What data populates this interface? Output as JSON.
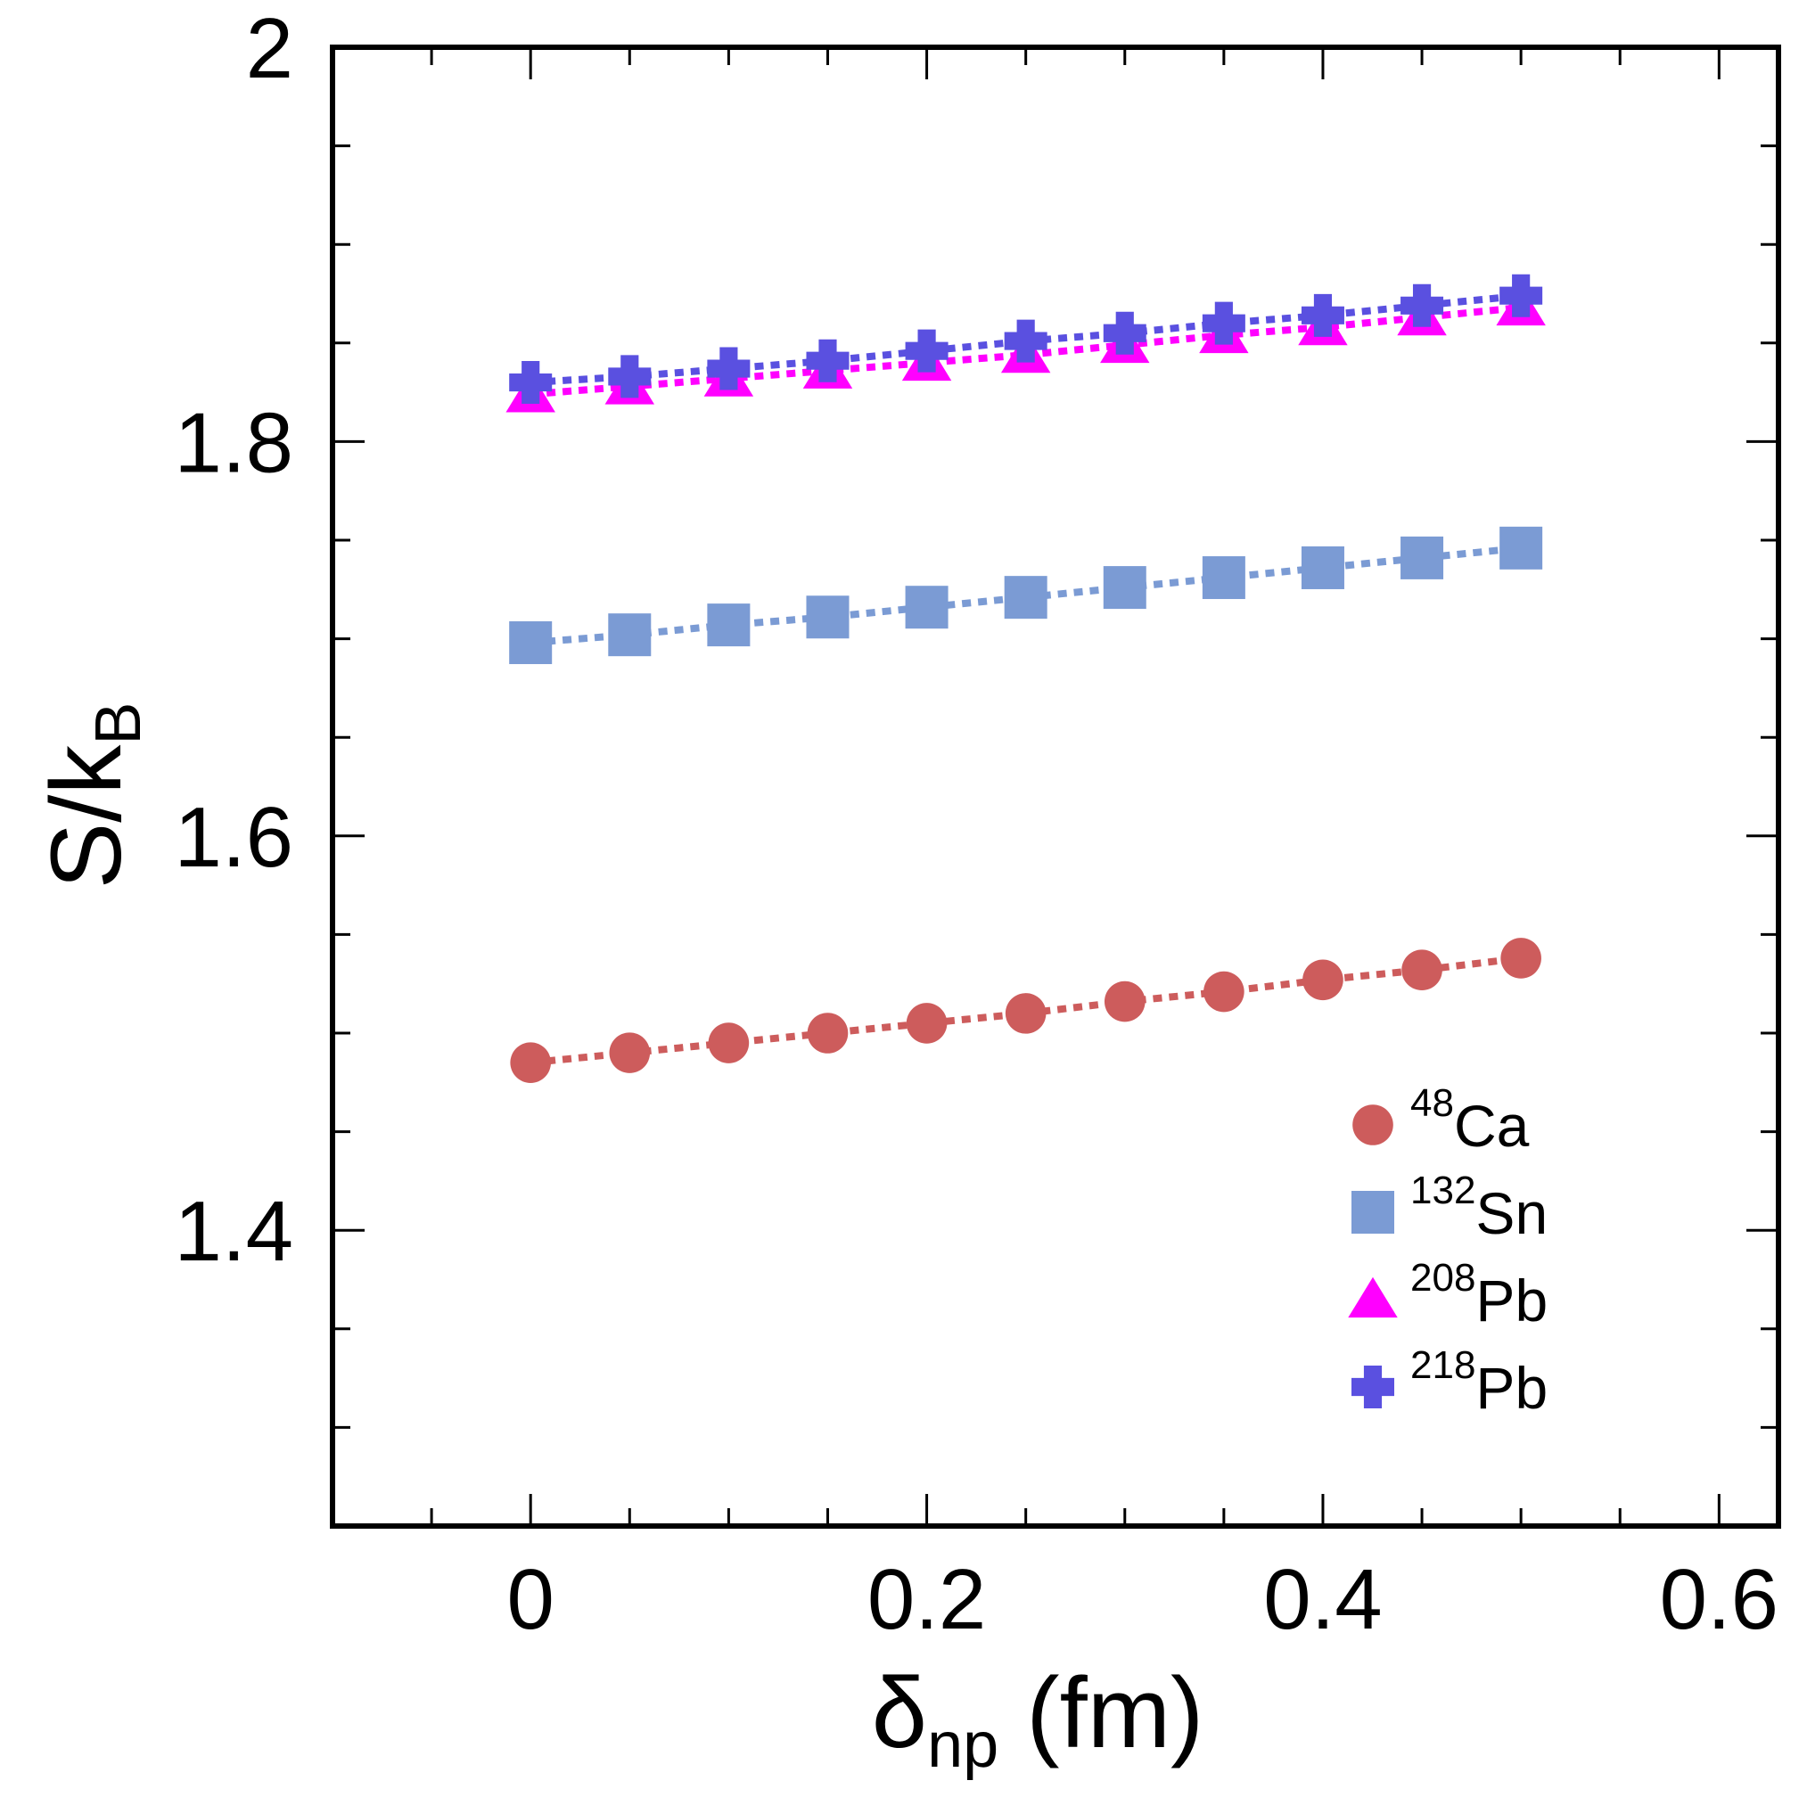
{
  "chart_data": {
    "type": "line",
    "title": "",
    "xlabel": {
      "symbol": "δ",
      "sub": "np",
      "suffix": " (fm)"
    },
    "ylabel": {
      "main": "S/k",
      "sub": "B"
    },
    "xlim": [
      -0.1,
      0.63
    ],
    "ylim": [
      1.25,
      2.0
    ],
    "xticks": [
      0,
      0.2,
      0.4,
      0.6
    ],
    "xtick_labels": [
      "0",
      "0.2",
      "0.4",
      "0.6"
    ],
    "yticks": [
      1.4,
      1.6,
      1.8,
      2.0
    ],
    "ytick_labels": [
      "1.4",
      "1.6",
      "1.8",
      "2"
    ],
    "x_minor_step": 0.05,
    "y_minor_step": 0.05,
    "grid": false,
    "legend_position": "bottom-right",
    "x": [
      0,
      0.05,
      0.1,
      0.15,
      0.2,
      0.25,
      0.3,
      0.35,
      0.4,
      0.45,
      0.5
    ],
    "series": [
      {
        "name": "Ca",
        "mass_number": "48",
        "marker": "circle",
        "color": "#cd5c5c",
        "values": [
          1.485,
          1.49,
          1.495,
          1.5,
          1.505,
          1.51,
          1.516,
          1.521,
          1.527,
          1.532,
          1.538
        ]
      },
      {
        "name": "Sn",
        "mass_number": "132",
        "marker": "square",
        "color": "#7b9bd4",
        "values": [
          1.698,
          1.702,
          1.707,
          1.711,
          1.716,
          1.721,
          1.726,
          1.731,
          1.736,
          1.741,
          1.746
        ]
      },
      {
        "name": "Pb",
        "mass_number": "208",
        "marker": "triangle",
        "color": "#ff00ff",
        "values": [
          1.824,
          1.828,
          1.832,
          1.836,
          1.84,
          1.844,
          1.849,
          1.854,
          1.858,
          1.863,
          1.868
        ]
      },
      {
        "name": "Pb",
        "mass_number": "218",
        "marker": "plus",
        "color": "#5a50e0",
        "values": [
          1.83,
          1.833,
          1.837,
          1.841,
          1.846,
          1.851,
          1.855,
          1.86,
          1.864,
          1.869,
          1.874
        ]
      }
    ]
  }
}
